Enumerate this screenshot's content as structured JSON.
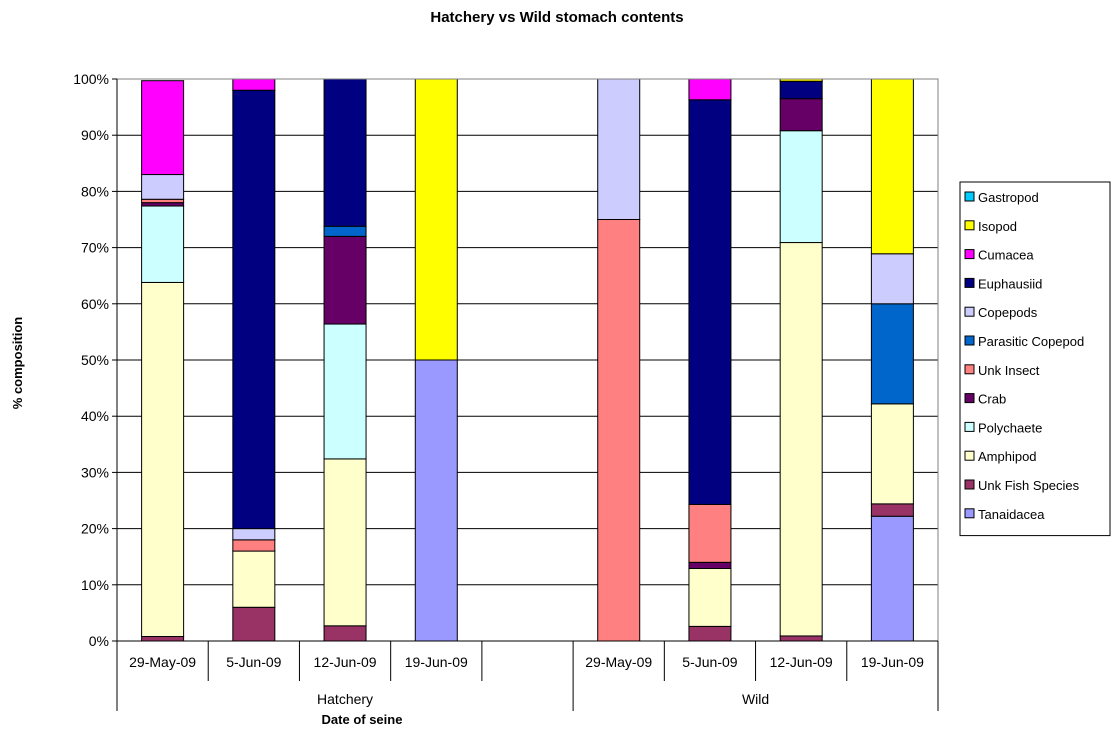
{
  "chart_data": {
    "type": "bar",
    "stacked": true,
    "percent_stacked": true,
    "title": "Hatchery vs Wild stomach contents",
    "xlabel": "Date of seine",
    "ylabel": "% composition",
    "ylim": [
      0,
      100
    ],
    "yticks": [
      "0%",
      "10%",
      "20%",
      "30%",
      "40%",
      "50%",
      "60%",
      "70%",
      "80%",
      "90%",
      "100%"
    ],
    "grid": true,
    "legend_position": "right",
    "groups": [
      {
        "name": "Hatchery",
        "categories": [
          "29-May-09",
          "5-Jun-09",
          "12-Jun-09",
          "19-Jun-09",
          ""
        ]
      },
      {
        "name": "Wild",
        "categories": [
          "29-May-09",
          "5-Jun-09",
          "12-Jun-09",
          "19-Jun-09"
        ]
      }
    ],
    "categories": [
      "29-May-09",
      "5-Jun-09",
      "12-Jun-09",
      "19-Jun-09",
      "",
      "29-May-09",
      "5-Jun-09",
      "12-Jun-09",
      "19-Jun-09"
    ],
    "series": [
      {
        "name": "Tanaidacea",
        "color": "#9999ff",
        "values": [
          0,
          0,
          0,
          50,
          0,
          0,
          0,
          0,
          22.2
        ]
      },
      {
        "name": "Unk Fish Species",
        "color": "#993366",
        "values": [
          0.8,
          6,
          2.7,
          0,
          0,
          0,
          2.6,
          0.9,
          2.2
        ]
      },
      {
        "name": "Amphipod",
        "color": "#ffffcc",
        "values": [
          63,
          10,
          29.7,
          0,
          0,
          0,
          10.3,
          70,
          17.8
        ]
      },
      {
        "name": "Polychaete",
        "color": "#ccffff",
        "values": [
          13.6,
          0,
          24,
          0,
          0,
          0,
          0,
          19.9,
          0
        ]
      },
      {
        "name": "Crab",
        "color": "#660066",
        "values": [
          0.6,
          0,
          15.6,
          0,
          0,
          0,
          1.1,
          5.7,
          0
        ]
      },
      {
        "name": "Unk Insect",
        "color": "#ff8080",
        "values": [
          0.6,
          2,
          0,
          0,
          0,
          75,
          10.3,
          0,
          0
        ]
      },
      {
        "name": "Parasitic Copepod",
        "color": "#0066cc",
        "values": [
          0,
          0,
          1.8,
          0,
          0,
          0,
          0,
          0,
          17.8
        ]
      },
      {
        "name": "Copepods",
        "color": "#ccccff",
        "values": [
          4.4,
          2,
          0,
          0,
          0,
          25,
          0,
          0,
          8.9
        ]
      },
      {
        "name": "Euphausiid",
        "color": "#000080",
        "values": [
          0,
          78,
          26.2,
          0,
          0,
          0,
          72,
          3.1,
          0
        ]
      },
      {
        "name": "Cumacea",
        "color": "#ff00ff",
        "values": [
          16.7,
          2,
          0,
          0,
          0,
          0,
          3.7,
          0,
          0
        ]
      },
      {
        "name": "Isopod",
        "color": "#ffff00",
        "values": [
          0,
          0,
          0,
          50,
          0,
          0,
          0,
          0.4,
          31.1
        ]
      },
      {
        "name": "Gastropod",
        "color": "#00ccff",
        "values": [
          0,
          0,
          0,
          0,
          0,
          0,
          0,
          0,
          0
        ]
      }
    ]
  }
}
